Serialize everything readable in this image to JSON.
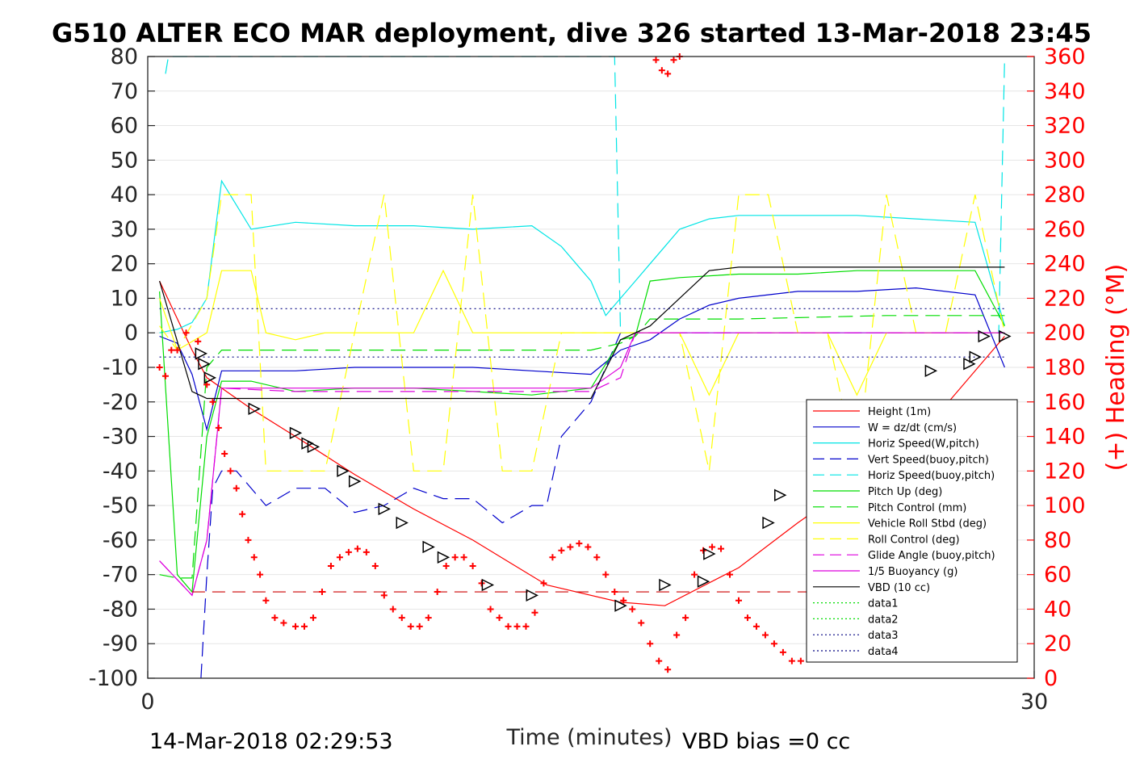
{
  "chart_data": {
    "type": "line",
    "title": "G510 ALTER ECO MAR deployment, dive 326 started 13-Mar-2018 23:45",
    "xlabel": "Time (minutes)",
    "ylabel_right": "(+) Heading (°M)",
    "footer_left": "14-Mar-2018 02:29:53",
    "footer_right": "VBD bias =0 cc",
    "xlim": [
      0,
      30
    ],
    "ylim": [
      -100,
      80
    ],
    "y2lim": [
      0,
      360
    ],
    "xticks": [
      "0",
      "30"
    ],
    "yticks": [
      "80",
      "70",
      "60",
      "50",
      "40",
      "30",
      "20",
      "10",
      "0",
      "-10",
      "-20",
      "-30",
      "-40",
      "-50",
      "-60",
      "-70",
      "-80",
      "-90",
      "-100"
    ],
    "y2ticks": [
      "360",
      "340",
      "320",
      "300",
      "280",
      "260",
      "240",
      "220",
      "200",
      "180",
      "160",
      "140",
      "120",
      "100",
      "80",
      "60",
      "40",
      "20",
      "0"
    ],
    "grid": "horizontal",
    "legend_placement": "lower-right",
    "series": [
      {
        "name": "Height (1m)",
        "color": "#ff0000",
        "style": "solid",
        "x": [
          0.4,
          1.5,
          2.0,
          3.5,
          5.0,
          7.0,
          9.0,
          11.0,
          13.5,
          16.0,
          17.5,
          20.0,
          22.0,
          25.0,
          27.0,
          29.0
        ],
        "y": [
          15,
          -5,
          -13,
          -22,
          -30,
          -41,
          -51,
          -60,
          -73,
          -78,
          -79,
          -68,
          -55,
          -37,
          -21,
          -1
        ]
      },
      {
        "name": "W = dz/dt (cm/s)",
        "color": "#0000cc",
        "style": "solid",
        "x": [
          0.4,
          1.0,
          1.5,
          2.0,
          2.5,
          3.5,
          5,
          7,
          9,
          11,
          13,
          15,
          16,
          17,
          18,
          19,
          20,
          22,
          24,
          26,
          28,
          29
        ],
        "y": [
          -1,
          -3,
          -12,
          -28,
          -11,
          -11,
          -11,
          -10,
          -10,
          -10,
          -11,
          -12,
          -5,
          -2,
          4,
          8,
          10,
          12,
          12,
          13,
          11,
          -10
        ]
      },
      {
        "name": "Horiz Speed(W,pitch)",
        "color": "#00e5e5",
        "style": "solid",
        "x": [
          0.4,
          1.0,
          1.5,
          2.0,
          2.5,
          3.5,
          5,
          7,
          9,
          11,
          13,
          14,
          15,
          15.5,
          16,
          16.5,
          17,
          17.5,
          18,
          19,
          20,
          22,
          24,
          26,
          28,
          29
        ],
        "y": [
          0,
          1,
          3,
          10,
          44,
          30,
          32,
          31,
          31,
          30,
          31,
          25,
          15,
          5,
          10,
          15,
          20,
          25,
          30,
          33,
          34,
          34,
          34,
          33,
          32,
          2
        ]
      },
      {
        "name": "Vert Speed(buoy,pitch)",
        "color": "#0000cc",
        "style": "dashed",
        "x": [
          1.8,
          2.0,
          2.2,
          2.5,
          3,
          4,
          5,
          6,
          7,
          8,
          9,
          10,
          11,
          12,
          13,
          13.5,
          14,
          15,
          16,
          17,
          18,
          20,
          22,
          24,
          26,
          28,
          29
        ],
        "y": [
          -100,
          -70,
          -45,
          -40,
          -40,
          -50,
          -45,
          -45,
          -52,
          -50,
          -45,
          -48,
          -48,
          -55,
          -50,
          -50,
          -30,
          -20,
          0,
          0,
          0,
          0,
          0,
          0,
          0,
          0,
          0
        ]
      },
      {
        "name": "Horiz Speed(buoy,pitch)",
        "color": "#00e5e5",
        "style": "dashed",
        "x": [
          0.6,
          0.7,
          15.8,
          16,
          16.2,
          28.8,
          29
        ],
        "y": [
          75,
          80,
          80,
          0,
          0,
          0,
          80
        ]
      },
      {
        "name": "Pitch Up (deg)",
        "color": "#00dd00",
        "style": "solid",
        "x": [
          0.4,
          1.0,
          1.5,
          2.0,
          2.5,
          3.5,
          5,
          7,
          9,
          11,
          13,
          15,
          16,
          16.5,
          17,
          18,
          20,
          22,
          24,
          26,
          28,
          29
        ],
        "y": [
          12,
          -70,
          -75,
          -30,
          -14,
          -14,
          -17,
          -16,
          -16,
          -17,
          -18,
          -16,
          -2,
          -1,
          15,
          16,
          17,
          17,
          18,
          18,
          18,
          2
        ]
      },
      {
        "name": "Pitch Control (mm)",
        "color": "#00dd00",
        "style": "dashed",
        "x": [
          0.4,
          1.0,
          1.5,
          2.0,
          2.5,
          5,
          10,
          15,
          16,
          16.5,
          17,
          20,
          25,
          29
        ],
        "y": [
          -70,
          -71,
          -71,
          -10,
          -5,
          -5,
          -5,
          -5,
          -3,
          -1,
          4,
          4,
          5,
          5
        ]
      },
      {
        "name": "Vehicle Roll Stbd (deg)",
        "color": "#ffff00",
        "style": "solid",
        "x": [
          0.4,
          1,
          2,
          2.5,
          3,
          3.5,
          4,
          5,
          6,
          7,
          8,
          9,
          10,
          11,
          12,
          13,
          14,
          15,
          16,
          17,
          18,
          19,
          20,
          21,
          22,
          23,
          24,
          25,
          26,
          27,
          28,
          29
        ],
        "y": [
          10,
          -5,
          0,
          18,
          18,
          18,
          0,
          -2,
          0,
          0,
          0,
          0,
          18,
          0,
          0,
          0,
          0,
          0,
          0,
          0,
          0,
          -18,
          0,
          0,
          0,
          0,
          -18,
          0,
          0,
          0,
          0,
          0
        ]
      },
      {
        "name": "Roll Control (deg)",
        "color": "#ffff00",
        "style": "dashed",
        "x": [
          0.4,
          1,
          2,
          2.5,
          3,
          3.5,
          4,
          5,
          6,
          7,
          8,
          9,
          10,
          11,
          12,
          13,
          14,
          15,
          16,
          17,
          18,
          19,
          20,
          21,
          22,
          23,
          24,
          25,
          26,
          27,
          28,
          29
        ],
        "y": [
          2,
          -5,
          10,
          40,
          40,
          40,
          -40,
          -40,
          -40,
          0,
          40,
          -40,
          -40,
          40,
          -40,
          -40,
          0,
          0,
          0,
          0,
          0,
          -40,
          40,
          40,
          0,
          0,
          -40,
          40,
          0,
          0,
          40,
          0
        ]
      },
      {
        "name": "Glide Angle (buoy,pitch)",
        "color": "#dd00dd",
        "style": "dashed",
        "x": [
          0.4,
          1.5,
          2.0,
          2.5,
          5,
          10,
          15,
          16,
          16.5,
          17,
          20,
          25,
          29
        ],
        "y": [
          -66,
          -76,
          -60,
          -16,
          -17,
          -17,
          -17,
          -13,
          0,
          0,
          0,
          0,
          0
        ]
      },
      {
        "name": "1/5 Buoyancy (g)",
        "color": "#dd00dd",
        "style": "solid",
        "x": [
          0.4,
          1.5,
          2.0,
          2.5,
          5,
          10,
          15,
          16,
          16.5,
          17,
          20,
          25,
          29
        ],
        "y": [
          -66,
          -76,
          -60,
          -16,
          -16,
          -16,
          -16,
          -10,
          0,
          0,
          0,
          0,
          0
        ]
      },
      {
        "name": "VBD (10 cc)",
        "color": "#000000",
        "style": "solid",
        "x": [
          0.4,
          1.5,
          2.0,
          2.5,
          6,
          10,
          14,
          15,
          16,
          17,
          18,
          19,
          20,
          22,
          25,
          29
        ],
        "y": [
          15,
          -17,
          -19,
          -19,
          -19,
          -19,
          -19,
          -19,
          -2,
          2,
          10,
          18,
          19,
          19,
          19,
          19
        ]
      },
      {
        "name": "data1",
        "color": "#00dd00",
        "style": "dotted",
        "x": [],
        "y": []
      },
      {
        "name": "data2",
        "color": "#00dd00",
        "style": "dotted",
        "x": [],
        "y": []
      },
      {
        "name": "data3",
        "color": "#000080",
        "style": "dotted",
        "x": [
          0.4,
          29
        ],
        "y": [
          -7,
          -7
        ]
      },
      {
        "name": "data4",
        "color": "#000080",
        "style": "dotted",
        "x": [
          0.4,
          29
        ],
        "y": [
          7,
          7
        ]
      }
    ],
    "reference_line": {
      "color": "#cc0000",
      "style": "dashed",
      "y": -75,
      "x": [
        1.5,
        29
      ]
    },
    "heading_points": {
      "color": "#ff0000",
      "marker": "+",
      "x": [
        0.4,
        0.6,
        0.8,
        1.0,
        1.3,
        1.7,
        2.0,
        2.2,
        2.4,
        2.6,
        2.8,
        3.0,
        3.2,
        3.4,
        3.6,
        3.8,
        4.0,
        4.3,
        4.6,
        5.0,
        5.3,
        5.6,
        5.9,
        6.2,
        6.5,
        6.8,
        7.1,
        7.4,
        7.7,
        8.0,
        8.3,
        8.6,
        8.9,
        9.2,
        9.5,
        9.8,
        10.1,
        10.4,
        10.7,
        11.0,
        11.3,
        11.6,
        11.9,
        12.2,
        12.5,
        12.8,
        13.1,
        13.4,
        13.7,
        14.0,
        14.3,
        14.6,
        14.9,
        15.2,
        15.5,
        15.8,
        16.1,
        16.4,
        16.7,
        17.0,
        17.3,
        17.6,
        17.9,
        18.2,
        18.5,
        18.8,
        19.1,
        19.4,
        19.7,
        20.0,
        20.3,
        20.6,
        20.9,
        21.2,
        21.5,
        21.8,
        22.1,
        22.4,
        22.7,
        23.0,
        23.3,
        23.6,
        23.9,
        24.2,
        24.5,
        24.8,
        25.1,
        25.4,
        25.7,
        26.0,
        26.3,
        26.6,
        26.9,
        27.2,
        27.5,
        17.2,
        17.4,
        17.6,
        17.8,
        18.0
      ],
      "y": [
        180,
        175,
        190,
        190,
        200,
        195,
        170,
        160,
        145,
        130,
        120,
        110,
        95,
        80,
        70,
        60,
        45,
        35,
        32,
        30,
        30,
        35,
        50,
        65,
        70,
        73,
        75,
        73,
        65,
        48,
        40,
        35,
        30,
        30,
        35,
        50,
        65,
        70,
        70,
        65,
        55,
        40,
        35,
        30,
        30,
        30,
        38,
        55,
        70,
        74,
        76,
        78,
        76,
        70,
        60,
        50,
        45,
        40,
        32,
        20,
        10,
        5,
        25,
        35,
        60,
        74,
        76,
        75,
        60,
        45,
        35,
        30,
        25,
        20,
        15,
        10,
        10,
        15,
        25,
        35,
        45,
        55,
        64,
        66,
        64,
        55,
        45,
        35,
        25,
        15,
        30,
        50,
        60,
        62,
        58,
        358,
        352,
        350,
        358,
        360
      ]
    },
    "markers": {
      "color": "#000000",
      "marker": "triangle-right",
      "x": [
        1.8,
        1.9,
        2.1,
        3.6,
        5.0,
        5.4,
        5.6,
        6.6,
        7.0,
        8.0,
        8.6,
        9.5,
        10.0,
        11.5,
        13.0,
        16.0,
        17.5,
        18.8,
        19.0,
        21.0,
        21.4,
        22.6,
        25.2,
        25.4,
        25.6,
        26.3,
        26.5,
        27.8,
        28.0,
        28.3,
        29.0
      ],
      "y": [
        -6,
        -9,
        -13,
        -22,
        -29,
        -32,
        -33,
        -40,
        -43,
        -51,
        -55,
        -62,
        -65,
        -73,
        -76,
        -79,
        -73,
        -72,
        -64,
        -55,
        -47,
        -46,
        -44,
        -35,
        -33,
        -26,
        -11,
        -9,
        -7,
        -1,
        -1
      ]
    },
    "legend": [
      "Height (1m)",
      "W = dz/dt (cm/s)",
      "Horiz Speed(W,pitch)",
      "Vert Speed(buoy,pitch)",
      "Horiz Speed(buoy,pitch)",
      "Pitch Up (deg)",
      "Pitch Control (mm)",
      "Vehicle Roll Stbd (deg)",
      "Roll Control (deg)",
      "Glide Angle (buoy,pitch)",
      "1/5 Buoyancy (g)",
      "VBD (10 cc)",
      "data1",
      "data2",
      "data3",
      "data4"
    ]
  }
}
